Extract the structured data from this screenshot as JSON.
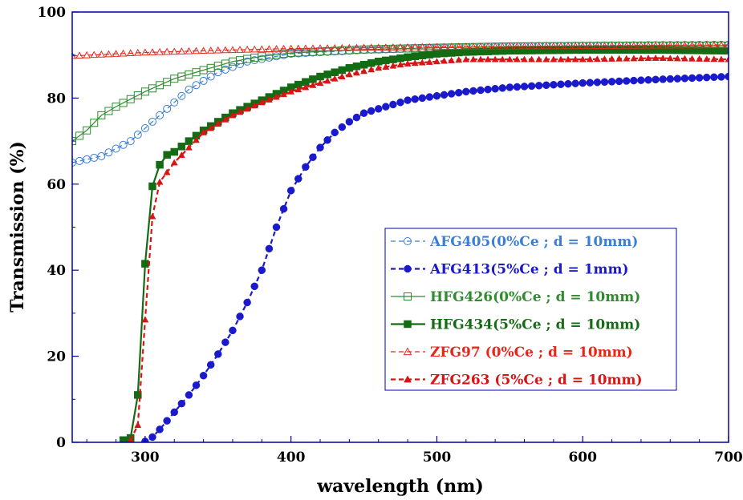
{
  "chart_data": {
    "type": "line",
    "xlabel": "wavelength (nm)",
    "ylabel": "Transmission (%)",
    "xlim": [
      250,
      700
    ],
    "ylim": [
      0,
      100
    ],
    "x_ticks": [
      "300",
      "400",
      "500",
      "600",
      "700"
    ],
    "y_ticks": [
      "0",
      "20",
      "40",
      "60",
      "80",
      "100"
    ],
    "grid": false,
    "legend_position": "right-center",
    "series": [
      {
        "name": "AFG405(0%Ce ; d = 10mm)",
        "color": "#3a7fd5",
        "marker": "circle-open",
        "line": "dashed",
        "x": [
          250,
          270,
          290,
          310,
          330,
          350,
          370,
          400,
          450,
          500,
          550,
          600,
          650,
          700
        ],
        "y": [
          65,
          66.5,
          70,
          76,
          82,
          86,
          88.5,
          90.3,
          91.2,
          91.7,
          92,
          92.2,
          92.3,
          92.4
        ]
      },
      {
        "name": "AFG413(5%Ce ; d = 1mm)",
        "color": "#1a1acc",
        "marker": "circle-filled",
        "line": "dashed",
        "x": [
          298,
          303,
          310,
          320,
          330,
          340,
          350,
          360,
          370,
          380,
          390,
          400,
          410,
          420,
          430,
          440,
          450,
          460,
          480,
          500,
          520,
          550,
          600,
          650,
          700
        ],
        "y": [
          0,
          0.5,
          3,
          7,
          11,
          15.5,
          20.5,
          26,
          32.5,
          40,
          50,
          58.5,
          64,
          68.5,
          72,
          74.5,
          76.5,
          77.5,
          79.5,
          80.5,
          81.5,
          82.5,
          83.5,
          84.3,
          85
        ]
      },
      {
        "name": "HFG426(0%Ce ; d = 10mm)",
        "color": "#2e8b2e",
        "marker": "square-open",
        "line": "solid",
        "x": [
          250,
          260,
          270,
          280,
          300,
          320,
          340,
          360,
          380,
          400,
          450,
          500,
          550,
          600,
          650,
          700
        ],
        "y": [
          70,
          72.5,
          76,
          78,
          81.5,
          84.5,
          86.5,
          88.5,
          89.7,
          90.5,
          91.3,
          91.7,
          92,
          92.1,
          92.2,
          92.2
        ]
      },
      {
        "name": "HFG434(5%Ce ; d = 10mm)",
        "color": "#136b13",
        "marker": "square-filled",
        "line": "solid",
        "x": [
          285,
          290,
          295,
          300,
          305,
          310,
          315,
          320,
          330,
          340,
          360,
          380,
          400,
          420,
          440,
          460,
          480,
          500,
          520,
          550,
          600,
          650,
          700
        ],
        "y": [
          0.5,
          1,
          11,
          41.5,
          59.5,
          64.5,
          66.8,
          67.5,
          70,
          72.5,
          76.5,
          79.5,
          82.5,
          85,
          87,
          88.5,
          89.5,
          90.3,
          90.7,
          91,
          91.2,
          91.2,
          91
        ]
      },
      {
        "name": "ZFG97 (0%Ce ; d = 10mm)",
        "color": "#e8261a",
        "marker": "triangle-open",
        "line": "dashed",
        "x": [
          250,
          300,
          350,
          400,
          450,
          500,
          550,
          600,
          650,
          700
        ],
        "y": [
          89.8,
          90.6,
          91.1,
          91.5,
          91.7,
          91.9,
          92,
          92.1,
          92.2,
          92.3
        ]
      },
      {
        "name": "ZFG263 (5%Ce ; d = 10mm)",
        "color": "#d81414",
        "marker": "triangle-filled",
        "line": "dashed",
        "x": [
          290,
          295,
          300,
          305,
          310,
          320,
          340,
          360,
          380,
          400,
          420,
          440,
          460,
          480,
          500,
          520,
          550,
          600,
          650,
          700
        ],
        "y": [
          0.5,
          4,
          28.5,
          52.5,
          60.5,
          65,
          72,
          76,
          79,
          81.5,
          83.5,
          85.5,
          87,
          88,
          88.5,
          89,
          89,
          89,
          89.3,
          89
        ]
      }
    ]
  }
}
